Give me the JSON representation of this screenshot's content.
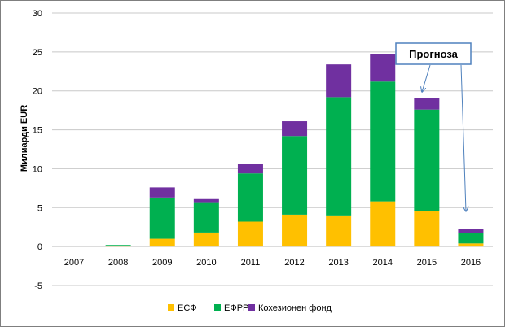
{
  "chart_data": {
    "type": "bar",
    "stacked": true,
    "categories": [
      "2007",
      "2008",
      "2009",
      "2010",
      "2011",
      "2012",
      "2013",
      "2014",
      "2015",
      "2016"
    ],
    "series": [
      {
        "name": "ЕСФ",
        "color": "#FFC000",
        "values": [
          0,
          0.1,
          1.0,
          1.8,
          3.2,
          4.1,
          4.0,
          5.8,
          4.6,
          0.4
        ]
      },
      {
        "name": "ЕФРР",
        "color": "#00B050",
        "values": [
          0,
          0.1,
          5.3,
          3.9,
          6.2,
          10.1,
          15.2,
          15.4,
          13.0,
          1.3
        ]
      },
      {
        "name": "Кохезионен фонд",
        "color": "#7030A0",
        "values": [
          0,
          0,
          1.3,
          0.4,
          1.2,
          1.9,
          4.2,
          3.5,
          1.5,
          0.6
        ]
      }
    ],
    "title": "",
    "xlabel": "",
    "ylabel": "Милиарди EUR",
    "ylim": [
      -5,
      30
    ],
    "yticks": [
      -5,
      0,
      5,
      10,
      15,
      20,
      25,
      30
    ],
    "grid": true,
    "legend_position": "bottom",
    "annotation": {
      "text": "Прогноза",
      "targets": [
        "2015",
        "2016"
      ]
    }
  }
}
